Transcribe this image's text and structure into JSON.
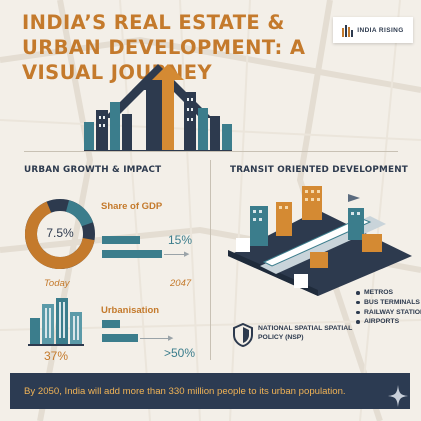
{
  "header": {
    "title": "INDIA’S REAL ESTATE & URBAN DEVELOPMENT: A VISUAL JOURNEY",
    "brand": "INDIA RISING"
  },
  "urban_growth": {
    "heading": "URBAN GROWTH & IMPACT",
    "gdp": {
      "label": "Share of GDP",
      "today_value": "7.5%",
      "future_value": "15%",
      "today_label": "Today",
      "future_label": "2047"
    },
    "urbanisation": {
      "label": "Urbanisation",
      "today_value": "37%",
      "future_value": ">50%"
    }
  },
  "transit": {
    "heading": "TRANSIT ORIENTED DEVELOPMENT",
    "items": [
      "METROS",
      "BUS TERMINALS",
      "RAILWAY STATIONS",
      "AIRPORTS"
    ],
    "policy": "NATIONAL SPATIAL SPATIAL POLICY (NSP)"
  },
  "footer": {
    "text": "By 2050, India will add more than 330 million people to its urban population."
  },
  "colors": {
    "accent_orange": "#c47a2c",
    "navy": "#2d3a4e",
    "teal": "#3b7d8c",
    "background": "#f3efe8",
    "banner_text": "#f0b356"
  },
  "icons": [
    "india-rising-logo-icon",
    "building-icon",
    "shield-icon",
    "sparkle-icon"
  ]
}
